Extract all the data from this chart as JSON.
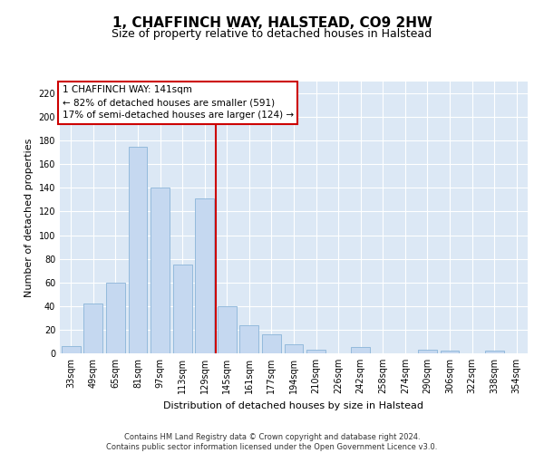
{
  "title": "1, CHAFFINCH WAY, HALSTEAD, CO9 2HW",
  "subtitle": "Size of property relative to detached houses in Halstead",
  "xlabel": "Distribution of detached houses by size in Halstead",
  "ylabel": "Number of detached properties",
  "categories": [
    "33sqm",
    "49sqm",
    "65sqm",
    "81sqm",
    "97sqm",
    "113sqm",
    "129sqm",
    "145sqm",
    "161sqm",
    "177sqm",
    "194sqm",
    "210sqm",
    "226sqm",
    "242sqm",
    "258sqm",
    "274sqm",
    "290sqm",
    "306sqm",
    "322sqm",
    "338sqm",
    "354sqm"
  ],
  "values": [
    6,
    42,
    60,
    175,
    140,
    75,
    131,
    40,
    24,
    16,
    8,
    3,
    0,
    5,
    0,
    0,
    3,
    2,
    0,
    2,
    0
  ],
  "bar_color": "#c5d8f0",
  "bar_edge_color": "#8ab4d8",
  "vline_color": "#cc0000",
  "annotation_text": "1 CHAFFINCH WAY: 141sqm\n← 82% of detached houses are smaller (591)\n17% of semi-detached houses are larger (124) →",
  "annotation_box_color": "#ffffff",
  "annotation_box_edge_color": "#cc0000",
  "ylim": [
    0,
    230
  ],
  "yticks": [
    0,
    20,
    40,
    60,
    80,
    100,
    120,
    140,
    160,
    180,
    200,
    220
  ],
  "bg_color": "#dce8f5",
  "grid_color": "#ffffff",
  "footer_line1": "Contains HM Land Registry data © Crown copyright and database right 2024.",
  "footer_line2": "Contains public sector information licensed under the Open Government Licence v3.0.",
  "title_fontsize": 11,
  "subtitle_fontsize": 9,
  "annotation_fontsize": 7.5,
  "axis_label_fontsize": 8,
  "ylabel_fontsize": 8,
  "tick_fontsize": 7,
  "footer_fontsize": 6
}
